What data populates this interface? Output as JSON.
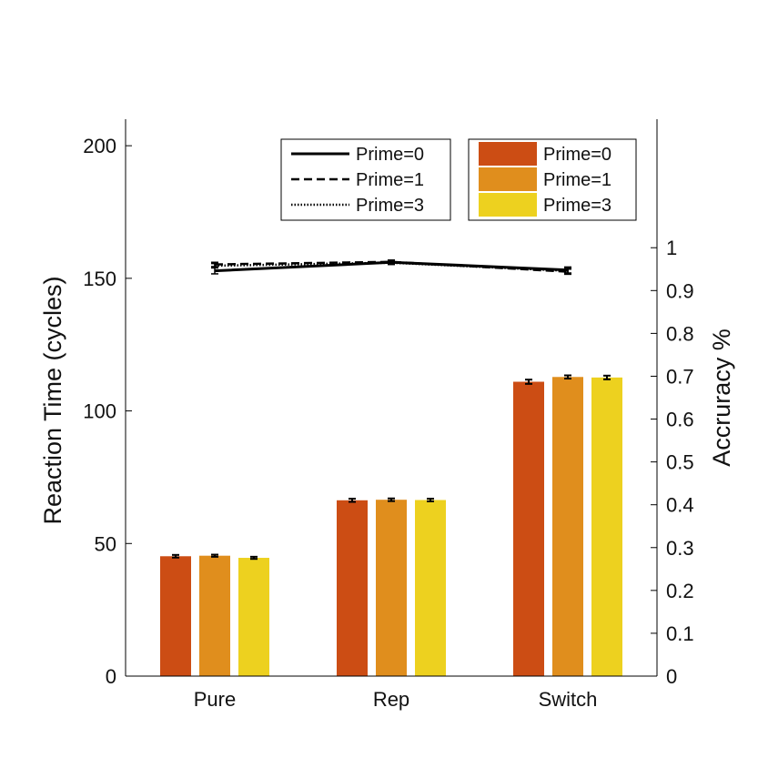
{
  "chart_data": {
    "type": "bar",
    "categories": [
      "Pure",
      "Rep",
      "Switch"
    ],
    "ylabel_left": "Reaction Time (cycles)",
    "ylabel_right": "Accruracy %",
    "ylim_left": [
      0,
      210
    ],
    "ylim_right": [
      0,
      1.3
    ],
    "yticks_left": [
      "0",
      "50",
      "100",
      "150",
      "200"
    ],
    "yticks_right": [
      "0",
      "0.1",
      "0.2",
      "0.3",
      "0.4",
      "0.5",
      "0.6",
      "0.7",
      "0.8",
      "0.9",
      "1"
    ],
    "bar_series": [
      {
        "name": "Prime=0",
        "color": "#CC4D14",
        "values": [
          45.2,
          66.3,
          111.0
        ],
        "errors": [
          0.5,
          0.6,
          0.8
        ]
      },
      {
        "name": "Prime=1",
        "color": "#E08E1D",
        "values": [
          45.4,
          66.5,
          112.8
        ],
        "errors": [
          0.4,
          0.5,
          0.6
        ]
      },
      {
        "name": "Prime=3",
        "color": "#EDD11F",
        "values": [
          44.6,
          66.4,
          112.6
        ],
        "errors": [
          0.4,
          0.5,
          0.7
        ]
      }
    ],
    "line_series": [
      {
        "name": "Prime=0",
        "style": "solid",
        "values": [
          0.946,
          0.966,
          0.948
        ],
        "errors": [
          0.007,
          0.005,
          0.007
        ]
      },
      {
        "name": "Prime=1",
        "style": "dashed",
        "values": [
          0.961,
          0.967,
          0.944
        ],
        "errors": [
          0.005,
          0.004,
          0.006
        ]
      },
      {
        "name": "Prime=3",
        "style": "dotted",
        "values": [
          0.958,
          0.965,
          0.946
        ],
        "errors": [
          0.005,
          0.004,
          0.006
        ]
      }
    ],
    "legend_lines_position": "top-center",
    "legend_bars_position": "top-right",
    "grid": false
  }
}
